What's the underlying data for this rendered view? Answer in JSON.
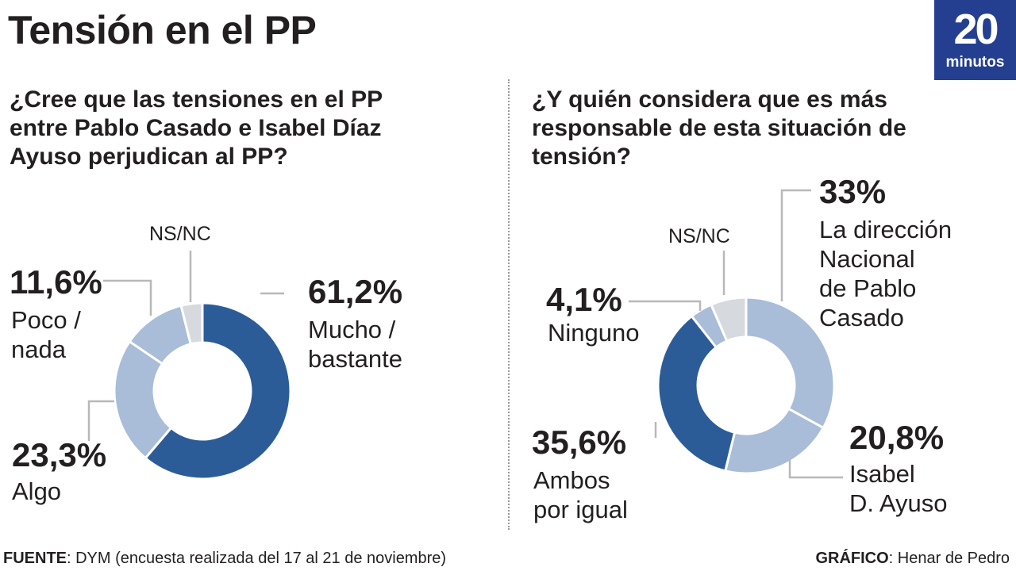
{
  "header": {
    "title": "Tensión en el PP"
  },
  "logo": {
    "number": "20",
    "word": "minutos"
  },
  "colors": {
    "dark": "#2c5c98",
    "light": "#a9bcd8",
    "nsnc": "#d6dadf",
    "text": "#231f20",
    "line": "#b8b8b8"
  },
  "chart_data": [
    {
      "type": "pie",
      "question": "¿Cree que las tensiones en el PP entre Pablo Casado e Isabel Díaz Ayuso perjudican al PP?",
      "slices": [
        {
          "key": "mucho",
          "value": 61.2,
          "pct": "61,2%",
          "label": [
            "Mucho /",
            "bastante"
          ],
          "color": "dark"
        },
        {
          "key": "algo",
          "value": 23.3,
          "pct": "23,3%",
          "label": [
            "Algo"
          ],
          "color": "light"
        },
        {
          "key": "poco",
          "value": 11.6,
          "pct": "11,6%",
          "label": [
            "Poco /",
            "nada"
          ],
          "color": "light"
        },
        {
          "key": "nsnc",
          "value": 3.9,
          "pct": "",
          "label": [
            "NS/NC"
          ],
          "color": "nsnc"
        }
      ]
    },
    {
      "type": "pie",
      "question": "¿Y quién considera que es más responsable de esta situación de tensión?",
      "slices": [
        {
          "key": "direccion",
          "value": 33,
          "pct": "33%",
          "label": [
            "La dirección",
            "Nacional",
            "de Pablo",
            "Casado"
          ],
          "color": "light"
        },
        {
          "key": "ayuso",
          "value": 20.8,
          "pct": "20,8%",
          "label": [
            "Isabel",
            "D. Ayuso"
          ],
          "color": "light"
        },
        {
          "key": "ambos",
          "value": 35.6,
          "pct": "35,6%",
          "label": [
            "Ambos",
            "por igual"
          ],
          "color": "dark"
        },
        {
          "key": "ninguno",
          "value": 4.1,
          "pct": "4,1%",
          "label": [
            "Ninguno"
          ],
          "color": "light"
        },
        {
          "key": "nsnc",
          "value": 6.5,
          "pct": "",
          "label": [
            "NS/NC"
          ],
          "color": "nsnc"
        }
      ]
    }
  ],
  "footer": {
    "source_label": "FUENTE",
    "source_text": ": DYM (encuesta realizada del 17 al 21 de noviembre)",
    "credit_label": "GRÁFICO",
    "credit_text": ": Henar de Pedro"
  }
}
